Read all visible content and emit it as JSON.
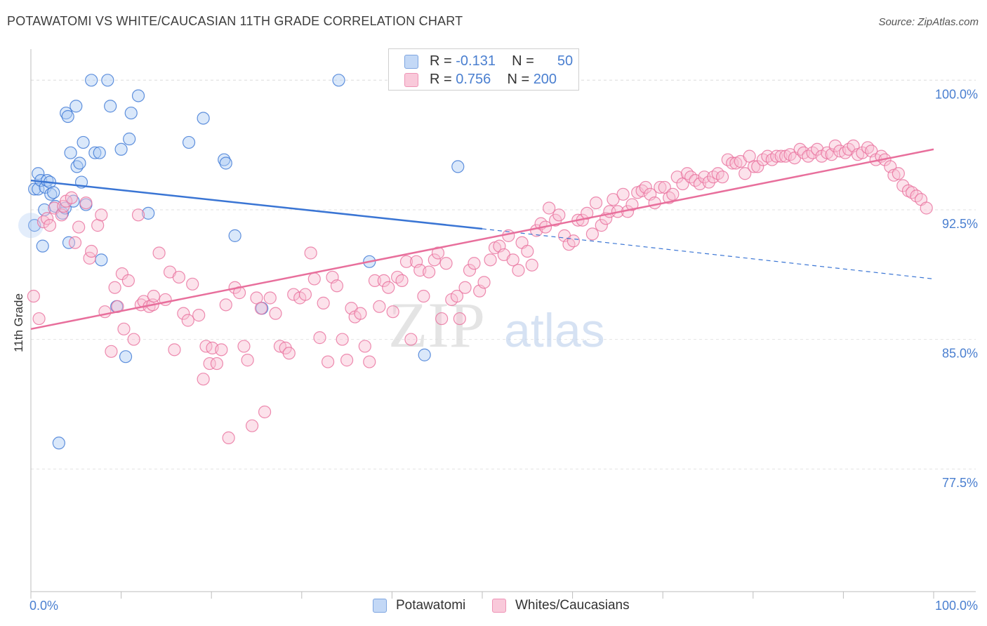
{
  "title": "POTAWATOMI VS WHITE/CAUCASIAN 11TH GRADE CORRELATION CHART",
  "source": "Source: ZipAtlas.com",
  "watermark": {
    "zip": "ZIP",
    "atlas": "atlas"
  },
  "colors": {
    "blue": "#3a75d4",
    "blue_fill": "#aeccf3",
    "pink": "#e86f9c",
    "pink_fill": "#f8bfd3",
    "axis_label": "#4a7fd0",
    "grid": "#e2e2e2"
  },
  "legend": {
    "rows": [
      {
        "r_label": "R =",
        "r_value": "-0.131",
        "n_label": "N =",
        "n_value": "50"
      },
      {
        "r_label": "R =",
        "r_value": "0.756",
        "n_label": "N =",
        "n_value": "200"
      }
    ]
  },
  "bottom_legend": {
    "series_a": "Potawatomi",
    "series_b": "Whites/Caucasians"
  },
  "chart_data": {
    "type": "scatter",
    "title": "POTAWATOMI VS WHITE/CAUCASIAN 11TH GRADE CORRELATION CHART",
    "xlabel": "",
    "ylabel": "11th Grade",
    "xlim": [
      0,
      100
    ],
    "ylim": [
      70.4,
      101.8
    ],
    "x_tick_labels": [
      "0.0%",
      "100.0%"
    ],
    "y_ticks": [
      100.0,
      92.5,
      85.0,
      77.5
    ],
    "y_tick_labels": [
      "100.0%",
      "92.5%",
      "85.0%",
      "77.5%"
    ],
    "legend_position": "top-center",
    "series": [
      {
        "name": "Potawatomi",
        "r": -0.131,
        "n": 50,
        "trend": {
          "x0": 0,
          "y0": 94.2,
          "x1": 50,
          "y1": 91.4,
          "dashed_to_x": 100,
          "dashed_to_y": 88.5
        },
        "points": [
          [
            0.4,
            91.6
          ],
          [
            0.4,
            93.7
          ],
          [
            0.8,
            94.6
          ],
          [
            0.8,
            93.7
          ],
          [
            1.1,
            94.2
          ],
          [
            1.3,
            90.4
          ],
          [
            1.5,
            92.5
          ],
          [
            1.6,
            93.8
          ],
          [
            1.8,
            94.2
          ],
          [
            2.1,
            94.1
          ],
          [
            2.2,
            93.4
          ],
          [
            2.5,
            93.5
          ],
          [
            2.7,
            92.7
          ],
          [
            3.1,
            79.0
          ],
          [
            3.5,
            92.3
          ],
          [
            3.8,
            92.6
          ],
          [
            3.9,
            98.1
          ],
          [
            4.1,
            97.9
          ],
          [
            4.2,
            90.6
          ],
          [
            4.4,
            95.8
          ],
          [
            4.7,
            93.0
          ],
          [
            5.0,
            98.5
          ],
          [
            5.1,
            95.0
          ],
          [
            5.4,
            95.2
          ],
          [
            5.6,
            94.1
          ],
          [
            5.8,
            96.4
          ],
          [
            6.1,
            92.8
          ],
          [
            6.7,
            100.0
          ],
          [
            7.1,
            95.8
          ],
          [
            7.6,
            95.8
          ],
          [
            7.8,
            89.6
          ],
          [
            8.5,
            100.0
          ],
          [
            8.8,
            98.5
          ],
          [
            9.5,
            86.9
          ],
          [
            10.0,
            96.0
          ],
          [
            10.5,
            84.0
          ],
          [
            10.9,
            96.6
          ],
          [
            11.1,
            98.1
          ],
          [
            11.9,
            99.1
          ],
          [
            13.0,
            92.3
          ],
          [
            17.5,
            96.4
          ],
          [
            19.1,
            97.8
          ],
          [
            21.4,
            95.4
          ],
          [
            21.6,
            95.2
          ],
          [
            22.6,
            91.0
          ],
          [
            25.6,
            86.8
          ],
          [
            34.1,
            100.0
          ],
          [
            37.5,
            89.5
          ],
          [
            43.6,
            84.1
          ],
          [
            47.3,
            95.0
          ]
        ]
      },
      {
        "name": "Whites/Caucasians",
        "r": 0.756,
        "n": 200,
        "trend": {
          "x0": 0,
          "y0": 85.6,
          "x1": 100,
          "y1": 96.0
        },
        "points": [
          [
            0.3,
            87.5
          ],
          [
            0.9,
            86.2
          ],
          [
            1.4,
            91.8
          ],
          [
            1.8,
            92.0
          ],
          [
            2.1,
            91.6
          ],
          [
            2.6,
            92.6
          ],
          [
            3.4,
            92.2
          ],
          [
            3.6,
            92.7
          ],
          [
            3.9,
            93.0
          ],
          [
            4.5,
            93.2
          ],
          [
            4.9,
            90.6
          ],
          [
            5.3,
            91.5
          ],
          [
            6.1,
            92.9
          ],
          [
            6.5,
            89.7
          ],
          [
            6.7,
            90.1
          ],
          [
            7.4,
            91.6
          ],
          [
            7.8,
            92.2
          ],
          [
            8.2,
            86.6
          ],
          [
            8.9,
            84.3
          ],
          [
            9.3,
            88.0
          ],
          [
            9.6,
            86.9
          ],
          [
            10.1,
            88.8
          ],
          [
            10.3,
            85.6
          ],
          [
            10.8,
            88.4
          ],
          [
            11.4,
            85.0
          ],
          [
            11.9,
            92.2
          ],
          [
            12.2,
            87.0
          ],
          [
            12.5,
            87.2
          ],
          [
            13.1,
            86.9
          ],
          [
            13.5,
            87.0
          ],
          [
            13.6,
            87.5
          ],
          [
            14.2,
            90.0
          ],
          [
            14.9,
            87.3
          ],
          [
            15.4,
            88.9
          ],
          [
            15.9,
            84.4
          ],
          [
            16.4,
            88.6
          ],
          [
            16.9,
            86.5
          ],
          [
            17.4,
            86.1
          ],
          [
            17.9,
            88.2
          ],
          [
            18.6,
            86.4
          ],
          [
            19.1,
            82.7
          ],
          [
            19.4,
            84.6
          ],
          [
            19.8,
            83.6
          ],
          [
            20.1,
            84.5
          ],
          [
            20.6,
            83.6
          ],
          [
            21.1,
            84.4
          ],
          [
            21.6,
            87.0
          ],
          [
            21.9,
            79.3
          ],
          [
            22.6,
            88.0
          ],
          [
            23.1,
            87.7
          ],
          [
            23.6,
            84.6
          ],
          [
            24.0,
            83.8
          ],
          [
            24.5,
            80.0
          ],
          [
            25.0,
            87.4
          ],
          [
            25.5,
            86.8
          ],
          [
            25.9,
            80.8
          ],
          [
            26.5,
            87.4
          ],
          [
            27.1,
            86.5
          ],
          [
            27.6,
            84.6
          ],
          [
            28.2,
            84.5
          ],
          [
            28.6,
            84.2
          ],
          [
            29.1,
            87.6
          ],
          [
            29.8,
            87.4
          ],
          [
            30.4,
            87.6
          ],
          [
            31.0,
            90.0
          ],
          [
            31.4,
            88.5
          ],
          [
            32.0,
            85.1
          ],
          [
            32.4,
            87.1
          ],
          [
            32.9,
            83.7
          ],
          [
            33.4,
            88.6
          ],
          [
            33.9,
            88.1
          ],
          [
            34.5,
            85.0
          ],
          [
            35.0,
            83.8
          ],
          [
            35.5,
            86.8
          ],
          [
            35.9,
            86.3
          ],
          [
            36.5,
            86.5
          ],
          [
            37.0,
            84.6
          ],
          [
            37.5,
            83.7
          ],
          [
            38.1,
            88.4
          ],
          [
            38.6,
            86.9
          ],
          [
            39.1,
            88.4
          ],
          [
            39.6,
            88.0
          ],
          [
            40.1,
            86.6
          ],
          [
            40.6,
            88.6
          ],
          [
            41.1,
            88.4
          ],
          [
            41.6,
            89.5
          ],
          [
            42.1,
            85.0
          ],
          [
            42.7,
            89.5
          ],
          [
            43.1,
            89.0
          ],
          [
            43.5,
            87.5
          ],
          [
            44.1,
            88.9
          ],
          [
            44.7,
            89.6
          ],
          [
            45.1,
            90.0
          ],
          [
            45.5,
            86.2
          ],
          [
            46.0,
            89.4
          ],
          [
            46.6,
            87.3
          ],
          [
            47.2,
            87.5
          ],
          [
            47.5,
            86.2
          ],
          [
            48.1,
            88.0
          ],
          [
            48.6,
            89.0
          ],
          [
            49.1,
            89.4
          ],
          [
            49.7,
            87.8
          ],
          [
            50.2,
            88.3
          ],
          [
            50.9,
            89.6
          ],
          [
            51.4,
            90.3
          ],
          [
            51.9,
            90.4
          ],
          [
            52.4,
            89.9
          ],
          [
            52.9,
            91.0
          ],
          [
            53.4,
            89.6
          ],
          [
            54.0,
            89.0
          ],
          [
            54.4,
            90.6
          ],
          [
            55.0,
            90.1
          ],
          [
            55.5,
            89.3
          ],
          [
            56.0,
            91.3
          ],
          [
            56.5,
            91.7
          ],
          [
            57.0,
            91.5
          ],
          [
            57.4,
            92.6
          ],
          [
            58.1,
            91.9
          ],
          [
            58.5,
            92.2
          ],
          [
            59.1,
            91.0
          ],
          [
            59.6,
            90.5
          ],
          [
            60.1,
            90.7
          ],
          [
            60.6,
            91.9
          ],
          [
            61.1,
            91.9
          ],
          [
            61.6,
            92.3
          ],
          [
            62.2,
            91.1
          ],
          [
            62.6,
            92.9
          ],
          [
            63.2,
            91.6
          ],
          [
            63.7,
            92.0
          ],
          [
            64.1,
            92.4
          ],
          [
            64.5,
            93.1
          ],
          [
            65.0,
            92.4
          ],
          [
            65.6,
            93.4
          ],
          [
            66.1,
            92.4
          ],
          [
            66.6,
            92.8
          ],
          [
            67.2,
            93.5
          ],
          [
            67.7,
            93.6
          ],
          [
            68.1,
            93.8
          ],
          [
            68.6,
            93.4
          ],
          [
            69.1,
            92.9
          ],
          [
            69.7,
            93.8
          ],
          [
            70.2,
            93.8
          ],
          [
            70.7,
            93.2
          ],
          [
            71.1,
            93.4
          ],
          [
            71.6,
            94.4
          ],
          [
            72.2,
            94.0
          ],
          [
            72.7,
            94.6
          ],
          [
            73.1,
            94.4
          ],
          [
            73.6,
            94.2
          ],
          [
            74.1,
            94.0
          ],
          [
            74.6,
            94.4
          ],
          [
            75.1,
            94.1
          ],
          [
            75.6,
            94.4
          ],
          [
            76.1,
            94.6
          ],
          [
            76.6,
            94.4
          ],
          [
            77.2,
            95.4
          ],
          [
            77.7,
            95.2
          ],
          [
            78.1,
            95.2
          ],
          [
            78.6,
            95.3
          ],
          [
            79.1,
            94.6
          ],
          [
            79.6,
            95.6
          ],
          [
            80.1,
            95.0
          ],
          [
            80.5,
            95.0
          ],
          [
            81.1,
            95.4
          ],
          [
            81.6,
            95.6
          ],
          [
            82.1,
            95.4
          ],
          [
            82.6,
            95.6
          ],
          [
            83.1,
            95.6
          ],
          [
            83.6,
            95.6
          ],
          [
            84.1,
            95.7
          ],
          [
            84.6,
            95.5
          ],
          [
            85.2,
            96.0
          ],
          [
            85.6,
            95.8
          ],
          [
            86.1,
            95.6
          ],
          [
            86.6,
            95.8
          ],
          [
            87.1,
            96.0
          ],
          [
            87.6,
            95.6
          ],
          [
            88.2,
            95.8
          ],
          [
            88.7,
            95.7
          ],
          [
            89.1,
            96.2
          ],
          [
            89.6,
            95.9
          ],
          [
            90.2,
            95.8
          ],
          [
            90.6,
            96.0
          ],
          [
            91.1,
            96.2
          ],
          [
            91.6,
            95.7
          ],
          [
            92.1,
            95.8
          ],
          [
            92.7,
            96.1
          ],
          [
            93.1,
            95.9
          ],
          [
            93.6,
            95.4
          ],
          [
            94.2,
            95.6
          ],
          [
            94.6,
            95.4
          ],
          [
            95.2,
            95.0
          ],
          [
            95.6,
            94.5
          ],
          [
            96.1,
            94.6
          ],
          [
            96.6,
            93.9
          ],
          [
            97.2,
            93.6
          ],
          [
            97.6,
            93.5
          ],
          [
            98.1,
            93.3
          ],
          [
            98.6,
            93.1
          ],
          [
            99.2,
            92.6
          ]
        ]
      }
    ]
  }
}
